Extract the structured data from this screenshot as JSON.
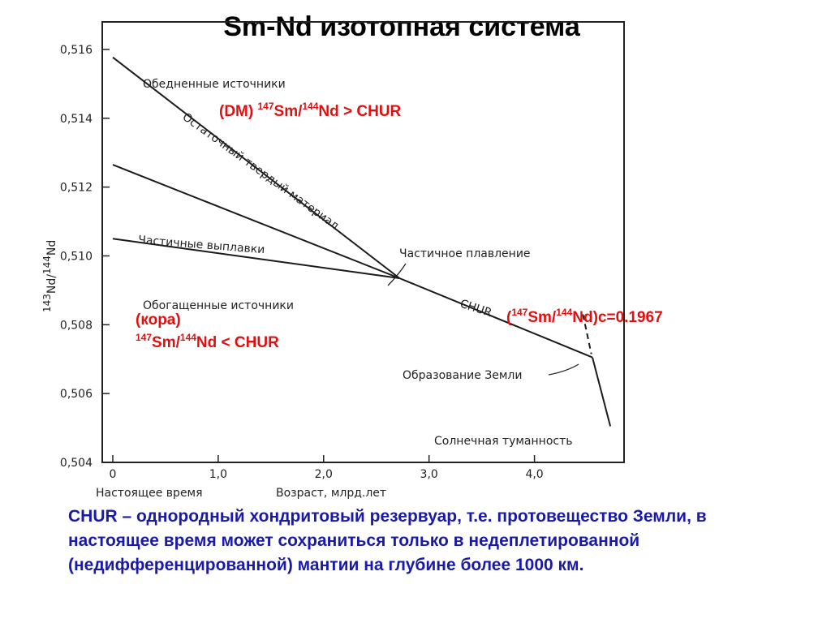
{
  "title": "Sm-Nd изотопная система",
  "chart_data": {
    "type": "line",
    "xlim": [
      -0.1,
      4.85
    ],
    "ylim": [
      0.504,
      0.5168
    ],
    "x_ticks": [
      {
        "value": 0,
        "label": "0"
      },
      {
        "value": 1,
        "label": "1,0"
      },
      {
        "value": 2,
        "label": "2,0"
      },
      {
        "value": 3,
        "label": "3,0"
      },
      {
        "value": 4,
        "label": "4,0"
      }
    ],
    "y_ticks": [
      {
        "value": 0.504,
        "label": "0,504"
      },
      {
        "value": 0.506,
        "label": "0,506"
      },
      {
        "value": 0.508,
        "label": "0,508"
      },
      {
        "value": 0.51,
        "label": "0,510"
      },
      {
        "value": 0.512,
        "label": "0,512"
      },
      {
        "value": 0.514,
        "label": "0,514"
      },
      {
        "value": 0.516,
        "label": "0,516"
      }
    ],
    "x_label_left": "Настоящее время",
    "x_label_center": "Возраст, млрд.лет",
    "y_label": {
      "pre": "143",
      "a": "Nd/",
      "pre2": "144",
      "b": "Nd"
    },
    "series": [
      {
        "name": "DM",
        "points": [
          [
            0,
            0.51577
          ],
          [
            2.72,
            0.50935
          ]
        ]
      },
      {
        "name": "partial",
        "points": [
          [
            0,
            0.51265
          ],
          [
            2.72,
            0.50935
          ]
        ]
      },
      {
        "name": "melts",
        "points": [
          [
            0,
            0.5105
          ],
          [
            2.72,
            0.50935
          ]
        ]
      },
      {
        "name": "CHUR",
        "points": [
          [
            2.72,
            0.50935
          ],
          [
            4.55,
            0.50705
          ]
        ]
      },
      {
        "name": "nebula",
        "points": [
          [
            4.55,
            0.50705
          ],
          [
            4.72,
            0.50505
          ]
        ]
      },
      {
        "name": "boundary",
        "dashed": true,
        "points": [
          [
            4.46,
            0.5083
          ],
          [
            4.54,
            0.50715
          ]
        ]
      }
    ],
    "annotations": {
      "depleted": "Обедненные источники",
      "residual": "Остаточный твердый материал",
      "partial_melts": "Частичные выплавки",
      "enriched": "Обогащенные источники",
      "partial_melting": "Частичное плавление",
      "chur": "CHUR",
      "earth_formation": "Образование Земли",
      "solar_nebula": "Солнечная туманность"
    }
  },
  "labels": {
    "dm": {
      "a": "(DM) ",
      "sup1": "147",
      "b": "Sm/",
      "sup2": "144",
      "c": "Nd > CHUR"
    },
    "crust_line1": "(кора)",
    "crust": {
      "sup1": "147",
      "b": "Sm/",
      "sup2": "144",
      "c": "Nd < CHUR"
    },
    "ratio": {
      "a": "(",
      "sup1": "147",
      "b": "Sm/",
      "sup2": "144",
      "c": "Nd)c=0.1967"
    }
  },
  "note": "CHUR – однородный хондритовый резервуар, т.е. протовещество Земли, в настоящее время может сохраниться только в недеплетированной (недифференцированной) мантии на глубине более 1000 км."
}
